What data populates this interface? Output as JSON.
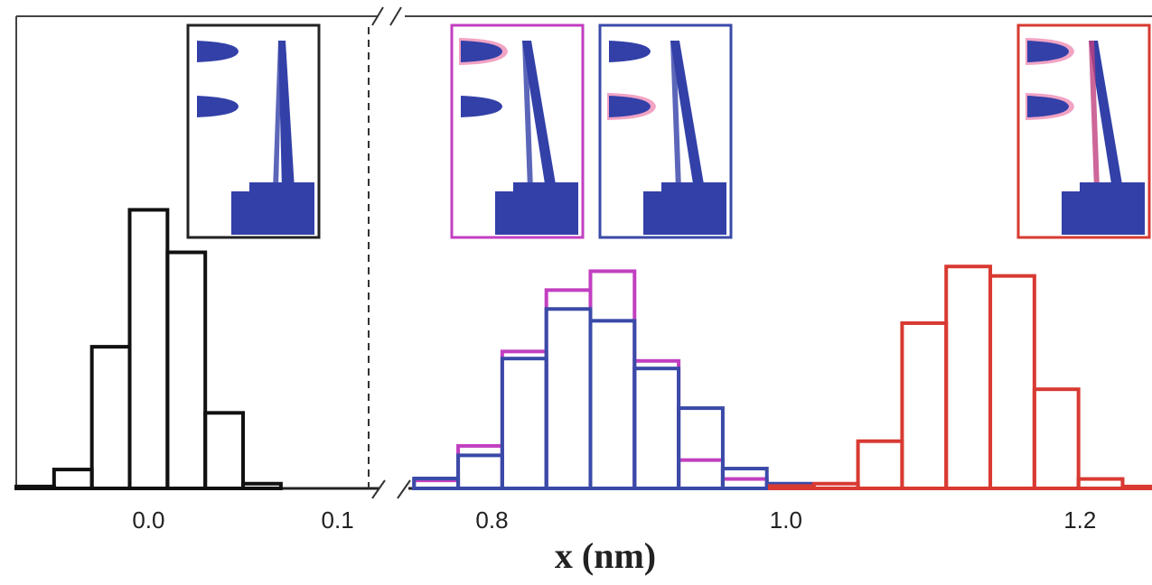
{
  "chart_data": {
    "type": "histogram",
    "xlabel": "x (nm)",
    "ylim": [
      0,
      100
    ],
    "panels": [
      {
        "xlim": [
          -0.07,
          0.115
        ],
        "xticks": [
          {
            "value": 0,
            "label": "0.0"
          },
          0.1
        ],
        "series": [
          {
            "color": "#111111",
            "bins": [
              -0.07,
              -0.05,
              -0.03,
              -0.01,
              0.01,
              0.03,
              0.05,
              0.07
            ],
            "values": [
              0.4,
              4,
              30,
              59,
              50,
              16,
              1
            ]
          }
        ]
      },
      {
        "xlim": [
          0.745,
          1.249
        ],
        "xticks": [
          0.8,
          {
            "value": 1,
            "label": "1.0"
          },
          1.2
        ],
        "series": [
          {
            "color": "#c23fc0",
            "bins": [
              0.747,
              0.777,
              0.807,
              0.837,
              0.867,
              0.897,
              0.927,
              0.957,
              0.987,
              1.017
            ],
            "values": [
              1.7,
              9,
              29,
              42,
              46,
              27,
              6,
              2,
              0.5
            ]
          },
          {
            "color": "#3a4aa8",
            "bins": [
              0.747,
              0.777,
              0.807,
              0.837,
              0.867,
              0.897,
              0.927,
              0.957,
              0.987,
              1.017
            ],
            "values": [
              2.1,
              7,
              27.5,
              38,
              35.5,
              25.4,
              17,
              4.2,
              1
            ]
          },
          {
            "color": "#d83a32",
            "bins": [
              0.989,
              1.019,
              1.049,
              1.079,
              1.109,
              1.139,
              1.169,
              1.199,
              1.229,
              1.259
            ],
            "values": [
              0.5,
              1,
              10,
              35,
              47,
              45,
              21,
              2,
              0.4
            ]
          }
        ]
      }
    ]
  }
}
